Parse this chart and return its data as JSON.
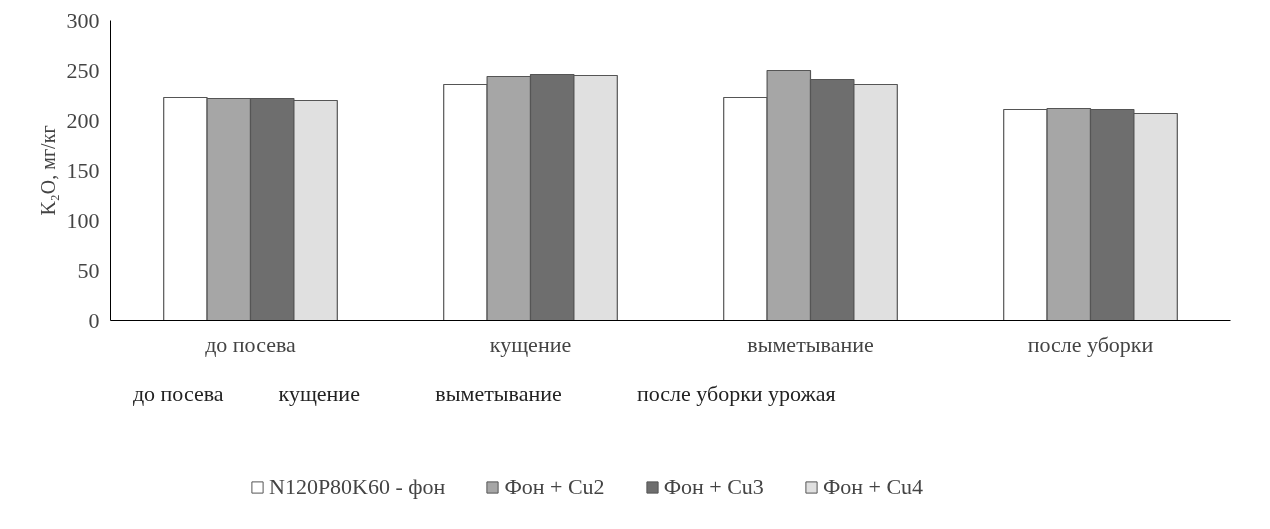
{
  "chart_data": {
    "type": "bar",
    "ylabel": "K₂O, мг/кг",
    "categories": [
      "до посева",
      "кущение",
      "выметывание",
      "после уборки"
    ],
    "series": [
      {
        "name": "N120P80K60 - фон",
        "color": "#ffffff",
        "values": [
          223,
          236,
          223,
          211
        ]
      },
      {
        "name": "Фон + Cu2",
        "color": "#a6a6a6",
        "values": [
          222,
          244,
          250,
          212
        ]
      },
      {
        "name": "Фон + Cu3",
        "color": "#6e6e6e",
        "values": [
          222,
          246,
          241,
          211
        ]
      },
      {
        "name": "Фон + Cu4",
        "color": "#e0e0e0",
        "values": [
          220,
          245,
          236,
          207
        ]
      }
    ],
    "annotations": [
      "до посева",
      "кущение",
      "выметывание",
      "после уборки урожая"
    ],
    "ylim": [
      0,
      300
    ],
    "yticks": [
      0,
      50,
      100,
      150,
      200,
      250,
      300
    ],
    "grid": false,
    "legend": "bottom"
  }
}
